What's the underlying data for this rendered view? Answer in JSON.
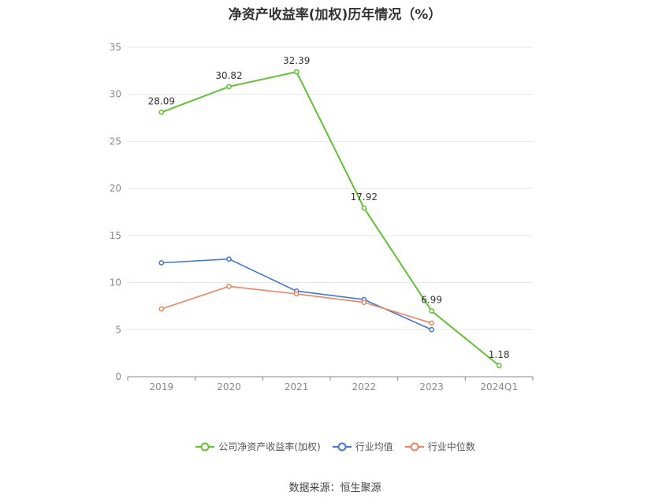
{
  "chart_data": {
    "type": "line",
    "title": "净资产收益率(加权)历年情况（%）",
    "categories": [
      "2019",
      "2020",
      "2021",
      "2022",
      "2023",
      "2024Q1"
    ],
    "ylim": [
      0,
      35
    ],
    "yticks": [
      "0",
      "5",
      "10",
      "15",
      "20",
      "25",
      "30",
      "35"
    ],
    "grid": true,
    "legend_position": "bottom",
    "series": [
      {
        "name": "公司净资产收益率(加权)",
        "color": "#5ec42d",
        "values": [
          28.09,
          30.82,
          32.39,
          17.92,
          6.99,
          1.18
        ],
        "labels": [
          "28.09",
          "30.82",
          "32.39",
          "17.92",
          "6.99",
          "1.18"
        ]
      },
      {
        "name": "行业均值",
        "color": "#3f78d6",
        "values": [
          12.1,
          12.5,
          9.1,
          8.2,
          5.0,
          null
        ]
      },
      {
        "name": "行业中位数",
        "color": "#f0845a",
        "values": [
          7.2,
          9.6,
          8.8,
          7.9,
          5.7,
          null
        ]
      }
    ]
  },
  "source": "数据来源：恒生聚源"
}
